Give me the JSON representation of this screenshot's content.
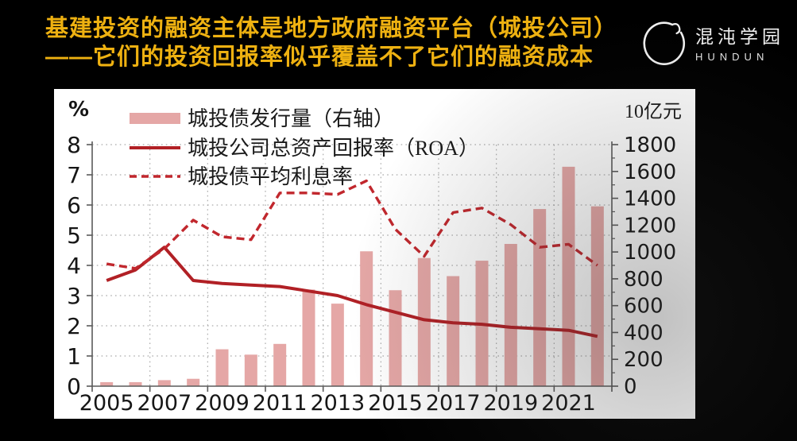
{
  "header": {
    "title_line1": "基建投资的融资主体是地方政府融资平台（城投公司）",
    "title_line2": "——它们的投资回报率似乎覆盖不了它们的融资成本",
    "title_color": "#eeb111",
    "logo": {
      "name_cn": "混沌学园",
      "name_en": "HUNDUN"
    }
  },
  "chart_data": {
    "type": "bar+line combo",
    "left_axis": {
      "unit": "%",
      "min": 0,
      "max": 8,
      "step": 1,
      "tick_labels": [
        "0",
        "1",
        "2",
        "3",
        "4",
        "5",
        "6",
        "7",
        "8"
      ]
    },
    "right_axis": {
      "unit": "10亿元",
      "min": 0,
      "max": 1800,
      "step": 200,
      "tick_labels": [
        "0",
        "200",
        "400",
        "600",
        "800",
        "1000",
        "1200",
        "1400",
        "1600",
        "1800"
      ]
    },
    "x_tick_labels": [
      "2005",
      "2007",
      "2009",
      "2011",
      "2013",
      "2015",
      "2017",
      "2019",
      "2021"
    ],
    "years": [
      2005,
      2006,
      2007,
      2008,
      2009,
      2010,
      2011,
      2012,
      2013,
      2014,
      2015,
      2016,
      2017,
      2018,
      2019,
      2020,
      2021,
      2022
    ],
    "grid": "dotted",
    "legend_position": "top-inside-left",
    "series": [
      {
        "name": "城投债发行量（右轴）",
        "type": "bar",
        "axis": "right",
        "color": "#e5a7a6",
        "values": [
          30,
          30,
          45,
          55,
          275,
          235,
          315,
          720,
          615,
          1005,
          715,
          955,
          820,
          935,
          1060,
          1320,
          1635,
          1340
        ]
      },
      {
        "name": "城投公司总资产回报率（ROA）",
        "type": "line",
        "axis": "left",
        "color": "#b12025",
        "values": [
          3.5,
          3.85,
          4.6,
          3.5,
          3.4,
          3.35,
          3.3,
          3.15,
          3.0,
          2.7,
          2.45,
          2.2,
          2.1,
          2.05,
          1.95,
          1.9,
          1.85,
          1.65
        ]
      },
      {
        "name": "城投债平均利息率",
        "type": "line-dashed",
        "axis": "left",
        "color": "#c1272d",
        "values": [
          4.05,
          3.9,
          4.55,
          5.5,
          4.95,
          4.85,
          6.4,
          6.4,
          6.35,
          6.8,
          5.2,
          4.3,
          5.75,
          5.9,
          5.35,
          4.6,
          4.7,
          4.0
        ]
      }
    ]
  }
}
